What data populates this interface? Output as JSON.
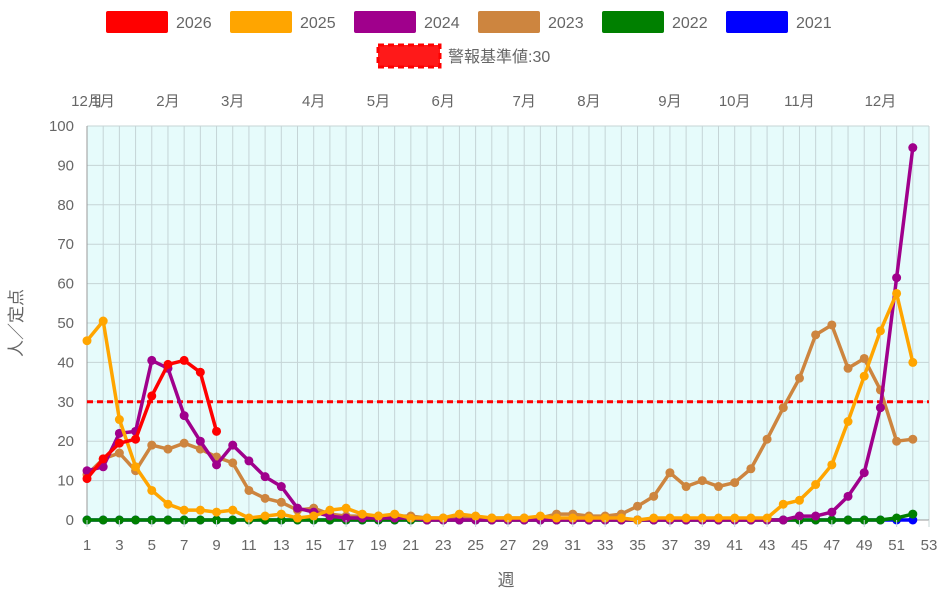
{
  "chart_data": {
    "type": "line",
    "xlabel": "週",
    "ylabel": "人／定点",
    "xlim": [
      1,
      53
    ],
    "ylim": [
      0,
      100
    ],
    "x_ticks": [
      1,
      3,
      5,
      7,
      9,
      11,
      13,
      15,
      17,
      19,
      21,
      23,
      25,
      27,
      29,
      31,
      33,
      35,
      37,
      39,
      41,
      43,
      45,
      47,
      49,
      51,
      53
    ],
    "y_ticks": [
      0,
      10,
      20,
      30,
      40,
      50,
      60,
      70,
      80,
      90,
      100
    ],
    "month_labels": [
      {
        "label": "12月",
        "week": 1
      },
      {
        "label": "1月",
        "week": 2
      },
      {
        "label": "2月",
        "week": 6
      },
      {
        "label": "3月",
        "week": 10
      },
      {
        "label": "4月",
        "week": 15
      },
      {
        "label": "5月",
        "week": 19
      },
      {
        "label": "6月",
        "week": 23
      },
      {
        "label": "7月",
        "week": 28
      },
      {
        "label": "8月",
        "week": 32
      },
      {
        "label": "9月",
        "week": 37
      },
      {
        "label": "10月",
        "week": 41
      },
      {
        "label": "11月",
        "week": 45
      },
      {
        "label": "12月",
        "week": 50
      }
    ],
    "threshold": {
      "label": "警報基準値:30",
      "value": 30,
      "color": "#ff0000"
    },
    "grid": true,
    "legend_position": "top",
    "background_color": "#e6fbfb",
    "series": [
      {
        "name": "2026",
        "color": "#ff0000",
        "x": [
          1,
          2,
          3,
          4,
          5,
          6,
          7,
          8,
          9
        ],
        "values": [
          10.5,
          15.5,
          19.5,
          20.5,
          31.5,
          39.5,
          40.5,
          37.5,
          22.5
        ]
      },
      {
        "name": "2025",
        "color": "#ffa500",
        "x": [
          1,
          2,
          3,
          4,
          5,
          6,
          7,
          8,
          9,
          10,
          11,
          12,
          13,
          14,
          15,
          16,
          17,
          18,
          19,
          20,
          21,
          22,
          23,
          24,
          25,
          26,
          27,
          28,
          29,
          30,
          31,
          32,
          33,
          34,
          35,
          36,
          37,
          38,
          39,
          40,
          41,
          42,
          43,
          44,
          45,
          46,
          47,
          48,
          49,
          50,
          51,
          52
        ],
        "values": [
          45.5,
          50.5,
          25.5,
          13.5,
          7.5,
          4,
          2.5,
          2.5,
          2,
          2.5,
          0.5,
          1,
          1.5,
          0.5,
          1,
          2.5,
          3,
          1.5,
          1,
          1.5,
          0.5,
          0.5,
          0.5,
          1.5,
          1,
          0.5,
          0.5,
          0.5,
          1,
          0.5,
          0.5,
          0.5,
          0.5,
          0.5,
          0,
          0.5,
          0.5,
          0.5,
          0.5,
          0.5,
          0.5,
          0.5,
          0.5,
          4,
          5,
          9,
          14,
          25,
          36.5,
          48,
          57.5,
          40
        ]
      },
      {
        "name": "2024",
        "color": "#a0008c",
        "x": [
          1,
          2,
          3,
          4,
          5,
          6,
          7,
          8,
          9,
          10,
          11,
          12,
          13,
          14,
          15,
          16,
          17,
          18,
          19,
          20,
          21,
          22,
          23,
          24,
          25,
          26,
          27,
          28,
          29,
          30,
          31,
          32,
          33,
          34,
          35,
          36,
          37,
          38,
          39,
          40,
          41,
          42,
          43,
          44,
          45,
          46,
          47,
          48,
          49,
          50,
          51,
          52
        ],
        "values": [
          12.5,
          13.5,
          22,
          22.5,
          40.5,
          38.5,
          26.5,
          20,
          14,
          19,
          15,
          11,
          8.5,
          3,
          2,
          1,
          0.5,
          0.5,
          0.5,
          0.5,
          0.5,
          0,
          0,
          0,
          0,
          0,
          0,
          0,
          0,
          0,
          0,
          0,
          0,
          0,
          0,
          0,
          0,
          0,
          0,
          0,
          0,
          0,
          0,
          0,
          1,
          1,
          2,
          6,
          12,
          28.5,
          61.5,
          94.5
        ]
      },
      {
        "name": "2023",
        "color": "#cd853f",
        "x": [
          1,
          2,
          3,
          4,
          5,
          6,
          7,
          8,
          9,
          10,
          11,
          12,
          13,
          14,
          15,
          16,
          17,
          18,
          19,
          20,
          21,
          22,
          23,
          24,
          25,
          26,
          27,
          28,
          29,
          30,
          31,
          32,
          33,
          34,
          35,
          36,
          37,
          38,
          39,
          40,
          41,
          42,
          43,
          44,
          45,
          46,
          47,
          48,
          49,
          50,
          51,
          52
        ],
        "values": [
          11.5,
          15.5,
          17,
          12.5,
          19,
          18,
          19.5,
          18,
          16,
          14.5,
          7.5,
          5.5,
          4.5,
          2.5,
          3,
          1.5,
          1,
          1,
          1,
          1,
          1,
          0.5,
          0.5,
          0.5,
          0.5,
          0.5,
          0.5,
          0.5,
          0.5,
          1.5,
          1.5,
          1,
          1,
          1.5,
          3.5,
          6,
          12,
          8.5,
          10,
          8.5,
          9.5,
          13,
          20.5,
          28.5,
          36,
          47,
          49.5,
          38.5,
          41,
          33,
          20,
          20.5
        ]
      },
      {
        "name": "2022",
        "color": "#008000",
        "x": [
          1,
          2,
          3,
          4,
          5,
          6,
          7,
          8,
          9,
          10,
          11,
          12,
          13,
          14,
          15,
          16,
          17,
          18,
          19,
          20,
          21,
          22,
          23,
          24,
          25,
          26,
          27,
          28,
          29,
          30,
          31,
          32,
          33,
          34,
          35,
          36,
          37,
          38,
          39,
          40,
          41,
          42,
          43,
          44,
          45,
          46,
          47,
          48,
          49,
          50,
          51,
          52
        ],
        "values": [
          0,
          0,
          0,
          0,
          0,
          0,
          0,
          0,
          0,
          0,
          0,
          0,
          0,
          0,
          0,
          0,
          0,
          0,
          0,
          0,
          0,
          0,
          0,
          0,
          0,
          0,
          0,
          0,
          0,
          0,
          0,
          0,
          0,
          0,
          0,
          0,
          0,
          0,
          0,
          0,
          0,
          0,
          0,
          0,
          0,
          0,
          0,
          0,
          0,
          0,
          0.5,
          1.5
        ]
      },
      {
        "name": "2021",
        "color": "#0000ff",
        "x": [
          1,
          2,
          3,
          4,
          5,
          6,
          7,
          8,
          9,
          10,
          11,
          12,
          13,
          14,
          15,
          16,
          17,
          18,
          19,
          20,
          21,
          22,
          23,
          24,
          25,
          26,
          27,
          28,
          29,
          30,
          31,
          32,
          33,
          34,
          35,
          36,
          37,
          38,
          39,
          40,
          41,
          42,
          43,
          44,
          45,
          46,
          47,
          48,
          49,
          50,
          51,
          52
        ],
        "values": [
          0,
          0,
          0,
          0,
          0,
          0,
          0,
          0,
          0,
          0,
          0,
          0,
          0,
          0,
          0,
          0,
          0,
          0,
          0,
          0,
          0,
          0,
          0,
          0,
          0,
          0,
          0,
          0,
          0,
          0,
          0,
          0,
          0,
          0,
          0,
          0,
          0,
          0,
          0,
          0,
          0,
          0,
          0,
          0,
          0,
          0,
          0,
          0,
          0,
          0,
          0,
          0
        ]
      }
    ]
  }
}
